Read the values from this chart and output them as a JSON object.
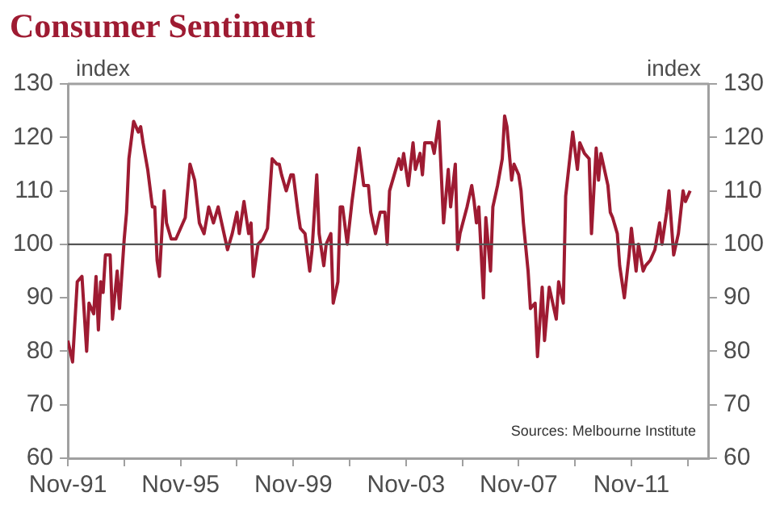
{
  "chart_data": {
    "type": "line",
    "title": "Consumer Sentiment",
    "ylabel": "index",
    "y2label": "index",
    "annotations": [
      "Sources: Melbourne Institute"
    ],
    "x": [
      "1991-11",
      "1992-01",
      "1992-03",
      "1992-05",
      "1992-07",
      "1992-08",
      "1992-10",
      "1992-11",
      "1992-12",
      "1993-01",
      "1993-02",
      "1993-03",
      "1993-05",
      "1993-06",
      "1993-08",
      "1993-09",
      "1993-11",
      "1993-12",
      "1994-01",
      "1994-03",
      "1994-05",
      "1994-06",
      "1994-07",
      "1994-09",
      "1994-11",
      "1994-12",
      "1995-01",
      "1995-02",
      "1995-04",
      "1995-05",
      "1995-07",
      "1995-09",
      "1995-11",
      "1996-01",
      "1996-03",
      "1996-05",
      "1996-07",
      "1996-09",
      "1996-11",
      "1997-01",
      "1997-03",
      "1997-04",
      "1997-06",
      "1997-07",
      "1997-09",
      "1997-11",
      "1997-12",
      "1998-02",
      "1998-04",
      "1998-05",
      "1998-06",
      "1998-08",
      "1998-10",
      "1998-12",
      "1999-02",
      "1999-04",
      "1999-05",
      "1999-06",
      "1999-08",
      "1999-10",
      "1999-11",
      "2000-01",
      "2000-02",
      "2000-04",
      "2000-06",
      "2000-07",
      "2000-09",
      "2000-10",
      "2000-12",
      "2001-01",
      "2001-03",
      "2001-04",
      "2001-06",
      "2001-07",
      "2001-08",
      "2001-10",
      "2001-12",
      "2002-03",
      "2002-05",
      "2002-07",
      "2002-08",
      "2002-10",
      "2002-12",
      "2003-02",
      "2003-03",
      "2003-04",
      "2003-06",
      "2003-08",
      "2003-09",
      "2003-10",
      "2003-12",
      "2004-02",
      "2004-03",
      "2004-05",
      "2004-06",
      "2004-07",
      "2004-10",
      "2004-11",
      "2005-01",
      "2005-03",
      "2005-05",
      "2005-06",
      "2005-08",
      "2005-09",
      "2005-10",
      "2006-01",
      "2006-03",
      "2006-04",
      "2006-05",
      "2006-06",
      "2006-08",
      "2006-09",
      "2006-11",
      "2006-12",
      "2007-02",
      "2007-04",
      "2007-05",
      "2007-06",
      "2007-08",
      "2007-09",
      "2007-11",
      "2007-12",
      "2008-01",
      "2008-03",
      "2008-04",
      "2008-06",
      "2008-07",
      "2008-09",
      "2008-10",
      "2008-12",
      "2009-02",
      "2009-03",
      "2009-04",
      "2009-06",
      "2009-07",
      "2009-10",
      "2009-12",
      "2010-01",
      "2010-03",
      "2010-05",
      "2010-06",
      "2010-08",
      "2010-09",
      "2010-10",
      "2011-01",
      "2011-02",
      "2011-03",
      "2011-05",
      "2011-06",
      "2011-08",
      "2011-10",
      "2011-11",
      "2012-01",
      "2012-02",
      "2012-04",
      "2012-05",
      "2012-07",
      "2012-09",
      "2012-11",
      "2012-12",
      "2013-02",
      "2013-03",
      "2013-05",
      "2013-07",
      "2013-08",
      "2013-09",
      "2013-10",
      "2013-12"
    ],
    "series": [
      {
        "color": "#9e1b32",
        "values": [
          82,
          78,
          93,
          94,
          80,
          89,
          87,
          94,
          84,
          93,
          91,
          98,
          98,
          86,
          95,
          88,
          101,
          106,
          116,
          123,
          121,
          122,
          119,
          114,
          107,
          107,
          97,
          94,
          110,
          104,
          101,
          101,
          103,
          105,
          115,
          112,
          104,
          102,
          107,
          104,
          107,
          105,
          101,
          99,
          102,
          106,
          102,
          108,
          102,
          104,
          94,
          100,
          101,
          103,
          116,
          115,
          115,
          113,
          110,
          113,
          113,
          106,
          103,
          102,
          95,
          99,
          113,
          102,
          96,
          100,
          102,
          89,
          93,
          107,
          107,
          100,
          108,
          118,
          111,
          111,
          106,
          102,
          106,
          106,
          100,
          110,
          113,
          116,
          114,
          117,
          111,
          119,
          114,
          117,
          113,
          119,
          119,
          117,
          123,
          104,
          114,
          107,
          115,
          99,
          102,
          107,
          111,
          108,
          104,
          107,
          90,
          105,
          95,
          107,
          111,
          116,
          124,
          122,
          112,
          115,
          113,
          110,
          104,
          95,
          88,
          89,
          79,
          92,
          82,
          92,
          88,
          86,
          93,
          89,
          109,
          121,
          114,
          119,
          117,
          116,
          102,
          118,
          112,
          117,
          111,
          106,
          105,
          102,
          96,
          90,
          98,
          103,
          95,
          100,
          95,
          96,
          97,
          99,
          104,
          100,
          106,
          110,
          98,
          102,
          106,
          110,
          108,
          110
        ]
      }
    ],
    "xlim": [
      "1991-11",
      "2014-08"
    ],
    "xticks": [
      {
        "value": "1991-11",
        "label": "Nov-91"
      },
      {
        "value": "1993-11",
        "label": null
      },
      {
        "value": "1995-11",
        "label": "Nov-95"
      },
      {
        "value": "1997-11",
        "label": null
      },
      {
        "value": "1999-11",
        "label": "Nov-99"
      },
      {
        "value": "2001-11",
        "label": null
      },
      {
        "value": "2003-11",
        "label": "Nov-03"
      },
      {
        "value": "2005-11",
        "label": null
      },
      {
        "value": "2007-11",
        "label": "Nov-07"
      },
      {
        "value": "2009-11",
        "label": null
      },
      {
        "value": "2011-11",
        "label": "Nov-11"
      },
      {
        "value": "2013-11",
        "label": null
      }
    ],
    "ylim": [
      60,
      130
    ],
    "yticks": [
      60,
      70,
      80,
      90,
      100,
      110,
      120,
      130
    ],
    "y2lim": [
      60,
      130
    ],
    "y2ticks": [
      60,
      70,
      80,
      90,
      100,
      110,
      120,
      130
    ],
    "ref_lines": [
      {
        "axis": "y",
        "value": 100,
        "color": "#555555"
      }
    ],
    "grid": false,
    "legend": false,
    "marker": "none",
    "line_style": "solid"
  }
}
